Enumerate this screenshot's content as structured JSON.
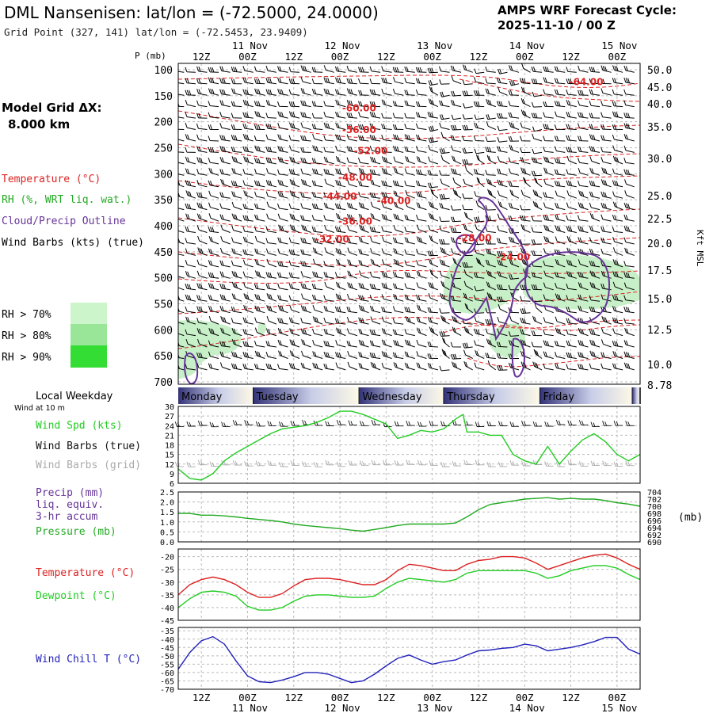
{
  "header": {
    "title": "DML Nansenisen:  lat/lon = (-72.5000, 24.0000)",
    "grid_point": "Grid Point (327, 141) lat/lon = (-72.5453, 23.9409)",
    "cycle_label": "AMPS WRF Forecast Cycle:",
    "cycle_value": "2025-11-10 / 00  Z"
  },
  "left_panel": {
    "model_grid_label": "Model Grid ΔX:",
    "model_grid_value": "8.000 km",
    "legend": [
      {
        "label": "Temperature (°C)",
        "color": "#dd2222"
      },
      {
        "label": "RH (%, WRT liq. wat.)",
        "color": "#22aa22"
      },
      {
        "label": "Cloud/Precip Outline",
        "color": "#663399"
      },
      {
        "label": "Wind Barbs (kts) (true)",
        "color": "#000000"
      }
    ],
    "rh_scale": [
      {
        "label": "RH > 70%",
        "color": "#ccf5cc"
      },
      {
        "label": "RH > 80%",
        "color": "#99e699"
      },
      {
        "label": "RH > 90%",
        "color": "#33dd33"
      }
    ]
  },
  "colors": {
    "temperature": "#dd2222",
    "dewpoint": "#22cc22",
    "rh_fill": "#c8f0c8",
    "cloud": "#663399",
    "wind_speed": "#22cc22",
    "pressure": "#22aa22",
    "wind_chill": "#2222bb",
    "grid": "#bbbbbb",
    "weekday_band_mid": "#333377",
    "weekday_band_light": "#fdf9e6"
  },
  "chart_data": [
    {
      "type": "line",
      "name": "vertical-cross-section",
      "ylabel": "P (mb)",
      "y_right_label": "Kft MSL",
      "time_ticks_top": [
        "12Z",
        "00Z",
        "12Z",
        "00Z",
        "12Z",
        "00Z",
        "12Z",
        "00Z",
        "12Z",
        "00Z"
      ],
      "date_ticks_top": [
        "11 Nov",
        "12 Nov",
        "13 Nov",
        "14 Nov",
        "15 Nov"
      ],
      "pressure_ticks": [
        100,
        150,
        200,
        250,
        300,
        350,
        400,
        450,
        500,
        550,
        600,
        650,
        700
      ],
      "kft_ticks": [
        "50.0",
        "45.0",
        "40.0",
        "35.0",
        "30.0",
        "25.0",
        "22.5",
        "20.0",
        "17.5",
        "15.0",
        "12.5",
        "10.0",
        "8.78"
      ],
      "ylim": [
        100,
        700
      ],
      "xlim_hours": [
        0,
        120
      ],
      "isotherm_labels": [
        {
          "text": "-64.00",
          "hour": 106,
          "p": 130
        },
        {
          "text": "-60.00",
          "hour": 47,
          "p": 180
        },
        {
          "text": "-56.00",
          "hour": 47,
          "p": 222
        },
        {
          "text": "-52.00",
          "hour": 50,
          "p": 262
        },
        {
          "text": "-48.00",
          "hour": 46,
          "p": 313
        },
        {
          "text": "-44.00",
          "hour": 42,
          "p": 350
        },
        {
          "text": "-40.00",
          "hour": 56,
          "p": 358
        },
        {
          "text": "-36.00",
          "hour": 46,
          "p": 398
        },
        {
          "text": "-32.00",
          "hour": 40,
          "p": 432
        },
        {
          "text": "-28.00",
          "hour": 77,
          "p": 430
        },
        {
          "text": "-24.00",
          "hour": 87,
          "p": 466
        }
      ]
    },
    {
      "type": "table",
      "name": "local-weekday",
      "title": "Local Weekday",
      "days": [
        {
          "name": "Monday",
          "start_hour": 0,
          "end_hour": 19.5
        },
        {
          "name": "Tuesday",
          "start_hour": 19.5,
          "end_hour": 47
        },
        {
          "name": "Wednesday",
          "start_hour": 47,
          "end_hour": 69
        },
        {
          "name": "Thursday",
          "start_hour": 69,
          "end_hour": 94
        },
        {
          "name": "Friday",
          "start_hour": 94,
          "end_hour": 118
        },
        {
          "name": "",
          "start_hour": 118,
          "end_hour": 120
        }
      ]
    },
    {
      "type": "line",
      "name": "wind-speed",
      "subtitle": "Wind at 10 m",
      "labels": [
        "Wind Spd (kts)",
        "Wind Barbs (true)",
        "Wind Barbs (grid)"
      ],
      "label_colors": [
        "#22cc22",
        "#111111",
        "#aaaaaa"
      ],
      "y_ticks": [
        6,
        9,
        12,
        15,
        18,
        21,
        24,
        27,
        30
      ],
      "ylim": [
        6,
        30
      ],
      "barb_rows": [
        24,
        11.5
      ],
      "series": [
        {
          "name": "Wind Spd (kts)",
          "x": [
            0,
            3,
            6,
            9,
            12,
            15,
            18,
            21,
            24,
            27,
            30,
            33,
            36,
            39,
            42,
            45,
            48,
            51,
            54,
            57,
            60,
            63,
            66,
            69,
            72,
            74,
            75,
            78,
            81,
            84,
            87,
            90,
            93,
            96,
            99,
            102,
            105,
            108,
            111,
            114,
            117,
            120
          ],
          "values": [
            10.5,
            7.5,
            7,
            9,
            13,
            15.5,
            17.5,
            19.5,
            21.5,
            23,
            23.5,
            24,
            25,
            26.5,
            28.5,
            28.5,
            27.5,
            26,
            24.5,
            20,
            21,
            22.5,
            22,
            23,
            26,
            27.5,
            22,
            22,
            21,
            21,
            15,
            13,
            12,
            17.5,
            12,
            16,
            19.5,
            21.5,
            19,
            15,
            13,
            15
          ]
        }
      ]
    },
    {
      "type": "line",
      "name": "precip-pressure",
      "labels": [
        "Precip (mm)",
        "liq. equiv.",
        "3-hr accum",
        "Pressure (mb)"
      ],
      "label_colors": [
        "#663399",
        "#663399",
        "#663399",
        "#22aa22"
      ],
      "y_left_ticks": [
        "0.0",
        "0.5",
        "1.0",
        "1.5",
        "2.0",
        "2.5"
      ],
      "y_right_ticks": [
        "690",
        "692",
        "694",
        "696",
        "698",
        "700",
        "702",
        "704"
      ],
      "y_right_label": "(mb)",
      "ylim_left": [
        0,
        2.5
      ],
      "ylim_right": [
        690,
        704
      ],
      "series": [
        {
          "name": "Pressure (mb)",
          "x": [
            0,
            3,
            6,
            9,
            12,
            15,
            18,
            21,
            24,
            27,
            30,
            33,
            36,
            39,
            42,
            45,
            48,
            51,
            54,
            57,
            60,
            63,
            66,
            69,
            72,
            75,
            78,
            81,
            84,
            87,
            90,
            93,
            96,
            99,
            102,
            105,
            108,
            111,
            114,
            117,
            120
          ],
          "values": [
            698,
            698,
            697.5,
            697.5,
            697.3,
            697,
            696.6,
            696.3,
            696,
            695.6,
            695,
            694.6,
            694.3,
            694,
            693.7,
            693.3,
            693,
            693.5,
            694,
            694.6,
            695,
            695,
            695,
            695,
            695.3,
            697,
            699,
            700.5,
            701,
            701.5,
            702,
            702.2,
            702.4,
            702,
            702.2,
            702,
            702,
            701.6,
            701,
            700.6,
            700
          ]
        }
      ]
    },
    {
      "type": "line",
      "name": "temperature-dewpoint",
      "labels": [
        "Temperature (°C)",
        "Dewpoint (°C)"
      ],
      "label_colors": [
        "#dd2222",
        "#22cc22"
      ],
      "y_ticks": [
        -45,
        -40,
        -35,
        -30,
        -25,
        -20
      ],
      "ylim": [
        -45,
        -17
      ],
      "series": [
        {
          "name": "Temperature (°C)",
          "x": [
            0,
            3,
            6,
            9,
            12,
            15,
            18,
            21,
            24,
            27,
            30,
            33,
            36,
            39,
            42,
            45,
            48,
            51,
            54,
            57,
            60,
            63,
            66,
            69,
            72,
            75,
            78,
            81,
            84,
            87,
            90,
            93,
            96,
            99,
            102,
            105,
            108,
            111,
            114,
            117,
            120
          ],
          "values": [
            -35,
            -31,
            -29,
            -28,
            -29,
            -31,
            -34,
            -36,
            -36,
            -34.5,
            -31.5,
            -29,
            -28.5,
            -28.5,
            -29,
            -30,
            -31,
            -31,
            -29,
            -25.5,
            -23,
            -23.5,
            -24.5,
            -25.5,
            -25.5,
            -23,
            -21.5,
            -21,
            -20,
            -20,
            -20.5,
            -22.5,
            -25,
            -23.5,
            -22,
            -20.5,
            -19.5,
            -19,
            -20.5,
            -23,
            -25
          ]
        },
        {
          "name": "Dewpoint (°C)",
          "x": [
            0,
            3,
            6,
            9,
            12,
            15,
            18,
            21,
            24,
            27,
            30,
            33,
            36,
            39,
            42,
            45,
            48,
            51,
            54,
            57,
            60,
            63,
            66,
            69,
            72,
            75,
            78,
            81,
            84,
            87,
            90,
            93,
            96,
            99,
            102,
            105,
            108,
            111,
            114,
            117,
            120
          ],
          "values": [
            -40,
            -36.5,
            -34,
            -33.5,
            -34,
            -35.5,
            -39.5,
            -41,
            -41,
            -40,
            -37.5,
            -35.5,
            -35,
            -35,
            -35.5,
            -36,
            -36,
            -35.5,
            -32.5,
            -30,
            -28.5,
            -29,
            -29.5,
            -30,
            -29,
            -26.5,
            -25.5,
            -25.5,
            -25.5,
            -25.5,
            -25.5,
            -26.5,
            -28.5,
            -27.5,
            -25.5,
            -24.5,
            -23.5,
            -23.5,
            -24.5,
            -27,
            -29
          ]
        }
      ]
    },
    {
      "type": "line",
      "name": "wind-chill",
      "labels": [
        "Wind Chill T (°C)"
      ],
      "label_colors": [
        "#2222bb"
      ],
      "y_ticks": [
        -70,
        -65,
        -60,
        -55,
        -50,
        -45,
        -40,
        -35
      ],
      "ylim": [
        -70,
        -33
      ],
      "series": [
        {
          "name": "Wind Chill T (°C)",
          "x": [
            0,
            3,
            6,
            9,
            12,
            15,
            18,
            21,
            24,
            27,
            30,
            33,
            36,
            39,
            42,
            45,
            48,
            51,
            54,
            57,
            60,
            63,
            66,
            69,
            72,
            75,
            78,
            81,
            84,
            87,
            90,
            93,
            96,
            99,
            102,
            105,
            108,
            111,
            114,
            117,
            120
          ],
          "values": [
            -58,
            -48,
            -41,
            -38.5,
            -43,
            -53,
            -62,
            -65.5,
            -66,
            -64.5,
            -62.5,
            -60,
            -60,
            -61,
            -63.5,
            -66,
            -65,
            -61,
            -56,
            -51.5,
            -49.5,
            -52.5,
            -55,
            -53.5,
            -52.5,
            -49.5,
            -47,
            -46.5,
            -45.5,
            -45,
            -43,
            -44,
            -47,
            -46,
            -45,
            -43.5,
            -41.5,
            -39,
            -39,
            -46,
            -49
          ]
        }
      ],
      "time_ticks_bottom": [
        "12Z",
        "00Z",
        "12Z",
        "00Z",
        "12Z",
        "00Z",
        "12Z",
        "00Z",
        "12Z",
        "00Z"
      ],
      "date_ticks_bottom": [
        "11 Nov",
        "12 Nov",
        "13 Nov",
        "14 Nov",
        "15 Nov"
      ]
    }
  ]
}
